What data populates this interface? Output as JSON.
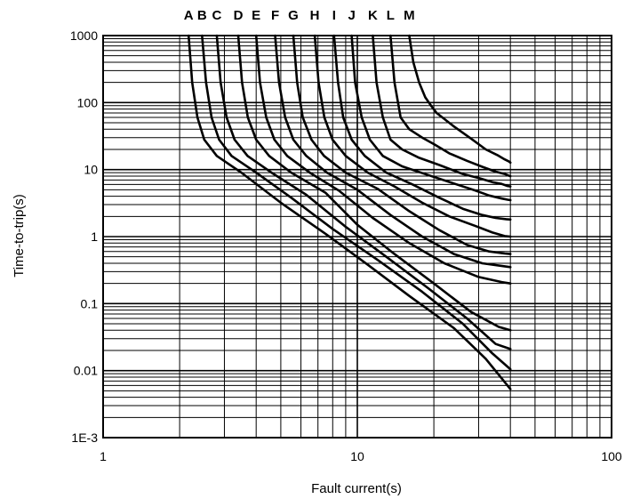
{
  "chart_data": {
    "type": "line",
    "title": "",
    "xlabel": "Fault current(s)",
    "ylabel": "Time-to-trip(s)",
    "xscale": "log",
    "yscale": "log",
    "xlim": [
      1,
      100
    ],
    "ylim": [
      0.001,
      1000
    ],
    "grid": true,
    "x_ticks": [
      1,
      10,
      100
    ],
    "x_tick_labels": [
      "1",
      "10",
      "100"
    ],
    "y_ticks": [
      0.001,
      0.01,
      0.1,
      1,
      10,
      100,
      1000
    ],
    "y_tick_labels": [
      "1E-3",
      "0.01",
      "0.1",
      "1",
      "10",
      "100",
      "1000"
    ],
    "series": [
      {
        "name": "A",
        "x": [
          2.17,
          2.24,
          2.35,
          2.5,
          2.8,
          3.5,
          5.0,
          7.5,
          11,
          16,
          24,
          32,
          40
        ],
        "y": [
          1000,
          200,
          60,
          28,
          16,
          9,
          3.2,
          1.1,
          0.38,
          0.13,
          0.043,
          0.015,
          0.0053
        ]
      },
      {
        "name": "B",
        "x": [
          2.45,
          2.54,
          2.67,
          2.86,
          3.2,
          4.0,
          5.5,
          8.0,
          12,
          18,
          26,
          34,
          40
        ],
        "y": [
          1000,
          200,
          60,
          28,
          16,
          9,
          3.8,
          1.3,
          0.45,
          0.15,
          0.05,
          0.018,
          0.0105
        ]
      },
      {
        "name": "C",
        "x": [
          2.8,
          2.9,
          3.06,
          3.29,
          3.7,
          4.6,
          6.3,
          9.0,
          13,
          19,
          27,
          35,
          40
        ],
        "y": [
          1000,
          200,
          60,
          28,
          16,
          9,
          4.2,
          1.4,
          0.5,
          0.17,
          0.06,
          0.025,
          0.021
        ]
      },
      {
        "name": "D",
        "x": [
          3.4,
          3.52,
          3.71,
          4.0,
          4.5,
          5.5,
          7.5,
          10,
          14,
          20,
          28,
          36,
          40
        ],
        "y": [
          1000,
          200,
          60,
          28,
          16,
          9,
          4.5,
          1.5,
          0.55,
          0.2,
          0.075,
          0.045,
          0.04
        ]
      },
      {
        "name": "E",
        "x": [
          4.0,
          4.14,
          4.38,
          4.72,
          5.3,
          6.5,
          8.5,
          11.5,
          16,
          22,
          30,
          37,
          40
        ],
        "y": [
          1000,
          200,
          60,
          28,
          16,
          9,
          4.8,
          1.9,
          0.8,
          0.4,
          0.25,
          0.21,
          0.2
        ]
      },
      {
        "name": "F",
        "x": [
          4.75,
          4.92,
          5.2,
          5.6,
          6.3,
          7.6,
          10,
          13.5,
          18,
          24,
          31,
          38,
          40
        ],
        "y": [
          1000,
          200,
          60,
          28,
          16,
          9,
          5.0,
          2.1,
          1.0,
          0.55,
          0.4,
          0.36,
          0.35
        ]
      },
      {
        "name": "G",
        "x": [
          5.6,
          5.8,
          6.1,
          6.6,
          7.4,
          9.0,
          12,
          16,
          21,
          27,
          33,
          38,
          40
        ],
        "y": [
          1000,
          200,
          60,
          28,
          16,
          9,
          5.2,
          2.4,
          1.25,
          0.75,
          0.6,
          0.56,
          0.55
        ]
      },
      {
        "name": "H",
        "x": [
          6.8,
          7.04,
          7.42,
          7.99,
          9.0,
          11,
          14,
          18,
          23,
          29,
          34,
          38,
          40
        ],
        "y": [
          1000,
          200,
          60,
          28,
          16,
          9,
          5.6,
          3.2,
          2.0,
          1.45,
          1.15,
          1.02,
          1.0
        ]
      },
      {
        "name": "I",
        "x": [
          8.1,
          8.4,
          8.8,
          9.5,
          10.7,
          13,
          16.5,
          21,
          26,
          31,
          35,
          38.5,
          40
        ],
        "y": [
          1000,
          200,
          60,
          28,
          16,
          9,
          6.0,
          3.8,
          2.6,
          2.1,
          1.9,
          1.82,
          1.8
        ]
      },
      {
        "name": "J",
        "x": [
          9.5,
          9.8,
          10.4,
          11.2,
          12.6,
          15,
          19,
          24,
          29,
          33,
          37,
          39,
          40
        ],
        "y": [
          1000,
          200,
          60,
          28,
          16,
          11.2,
          8.3,
          6.2,
          4.9,
          4.1,
          3.7,
          3.55,
          3.5
        ]
      },
      {
        "name": "K",
        "x": [
          11.5,
          11.9,
          12.6,
          13.5,
          15,
          17.5,
          21,
          26,
          30,
          34,
          37,
          39,
          40
        ],
        "y": [
          1000,
          200,
          60,
          28,
          20,
          15,
          11.7,
          8.6,
          7.5,
          6.5,
          6.1,
          5.7,
          5.6
        ]
      },
      {
        "name": "L",
        "x": [
          13.5,
          14,
          14.8,
          16,
          18,
          20,
          23,
          27,
          31,
          35,
          38,
          39.5,
          40
        ],
        "y": [
          1000,
          200,
          60,
          40,
          30,
          24,
          17.5,
          13.5,
          11,
          9.3,
          8.6,
          8.1,
          8.0
        ]
      },
      {
        "name": "M",
        "x": [
          16,
          16.6,
          17.5,
          18.5,
          19.5,
          20.5,
          24,
          28,
          32,
          35.5,
          38,
          39.5,
          40
        ],
        "y": [
          1000,
          400,
          200,
          120,
          90,
          70,
          44,
          29,
          20,
          16.5,
          14.2,
          13.2,
          12.7
        ]
      }
    ]
  }
}
